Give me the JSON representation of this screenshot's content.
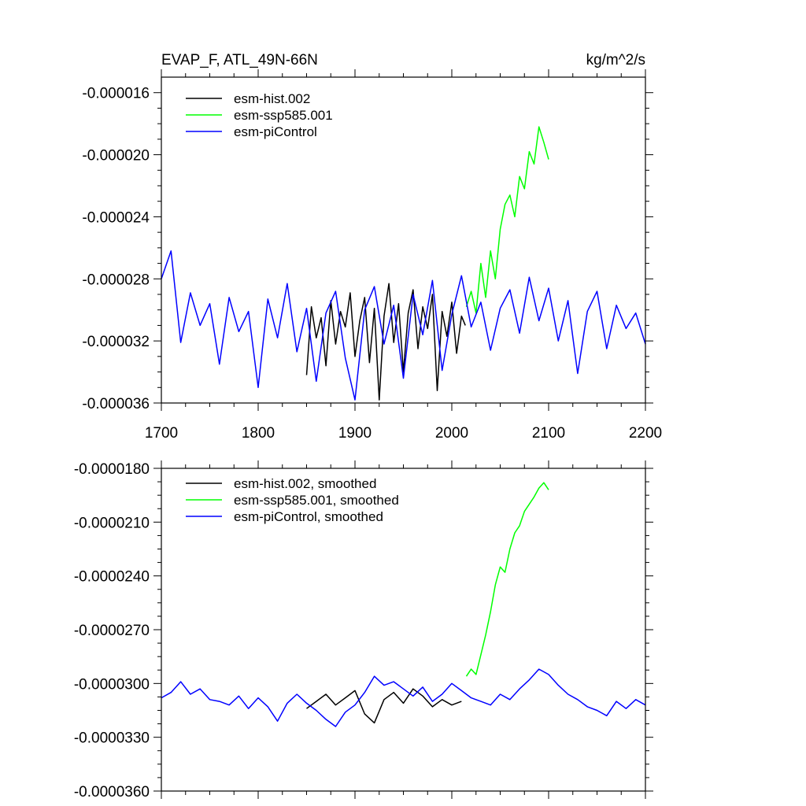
{
  "figure": {
    "title_left": "EVAP_F, ATL_49N-66N",
    "title_right": "kg/m^2/s"
  },
  "colors": {
    "esm-hist": "#000000",
    "esm-ssp585": "#00ff00",
    "esm-piControl": "#0000ff",
    "axes": "#000000",
    "background": "#ffffff"
  },
  "chart_data": [
    {
      "type": "line",
      "panel": "top",
      "title": "EVAP_F, ATL_49N-66N",
      "units": "kg/m^2/s",
      "xlabel": "",
      "ylabel": "",
      "xlim": [
        1700,
        2200
      ],
      "ylim": [
        -3.6e-05,
        -1.5e-05
      ],
      "xticks": [
        1700,
        1800,
        1900,
        2000,
        2100,
        2200
      ],
      "xtick_labels": [
        "1700",
        "1800",
        "1900",
        "2000",
        "2100",
        "2200"
      ],
      "yticks": [
        -1.6e-05,
        -2e-05,
        -2.4e-05,
        -2.8e-05,
        -3.2e-05,
        -3.6e-05
      ],
      "ytick_labels": [
        "-0.000016",
        "-0.000020",
        "-0.000024",
        "-0.000028",
        "-0.000032",
        "-0.000036"
      ],
      "grid": false,
      "legend_position": "top-left",
      "series": [
        {
          "name": "esm-hist.002",
          "color_key": "esm-hist",
          "x": [
            1850,
            1855,
            1860,
            1865,
            1870,
            1875,
            1880,
            1885,
            1890,
            1895,
            1900,
            1905,
            1910,
            1915,
            1920,
            1925,
            1930,
            1935,
            1940,
            1945,
            1950,
            1955,
            1960,
            1965,
            1970,
            1975,
            1980,
            1985,
            1990,
            1995,
            2000,
            2005,
            2010,
            2014
          ],
          "y": [
            -3.42e-05,
            -2.98e-05,
            -3.18e-05,
            -3.05e-05,
            -3.36e-05,
            -2.94e-05,
            -3.22e-05,
            -3.01e-05,
            -3.11e-05,
            -2.89e-05,
            -3.3e-05,
            -3.07e-05,
            -2.92e-05,
            -3.34e-05,
            -2.99e-05,
            -3.58e-05,
            -3.04e-05,
            -2.83e-05,
            -3.21e-05,
            -2.96e-05,
            -3.4e-05,
            -3.02e-05,
            -2.87e-05,
            -3.25e-05,
            -2.98e-05,
            -3.12e-05,
            -2.9e-05,
            -3.52e-05,
            -3.01e-05,
            -3.17e-05,
            -2.95e-05,
            -3.28e-05,
            -3.04e-05,
            -3.1e-05
          ]
        },
        {
          "name": "esm-ssp585.001",
          "color_key": "esm-ssp585",
          "x": [
            2015,
            2020,
            2025,
            2030,
            2035,
            2040,
            2045,
            2050,
            2055,
            2060,
            2065,
            2070,
            2075,
            2080,
            2085,
            2090,
            2095,
            2100
          ],
          "y": [
            -2.98e-05,
            -2.88e-05,
            -3.02e-05,
            -2.7e-05,
            -2.92e-05,
            -2.62e-05,
            -2.8e-05,
            -2.48e-05,
            -2.32e-05,
            -2.26e-05,
            -2.4e-05,
            -2.14e-05,
            -2.22e-05,
            -1.98e-05,
            -2.06e-05,
            -1.82e-05,
            -1.92e-05,
            -2.03e-05
          ]
        },
        {
          "name": "esm-piControl",
          "color_key": "esm-piControl",
          "x": [
            1700,
            1710,
            1720,
            1730,
            1740,
            1750,
            1760,
            1770,
            1780,
            1790,
            1800,
            1810,
            1820,
            1830,
            1840,
            1850,
            1860,
            1870,
            1880,
            1890,
            1900,
            1910,
            1920,
            1930,
            1940,
            1950,
            1960,
            1970,
            1980,
            1990,
            2000,
            2010,
            2020,
            2030,
            2040,
            2050,
            2060,
            2070,
            2080,
            2090,
            2100,
            2110,
            2120,
            2130,
            2140,
            2150,
            2160,
            2170,
            2180,
            2190,
            2200
          ],
          "y": [
            -2.8e-05,
            -2.62e-05,
            -3.21e-05,
            -2.89e-05,
            -3.1e-05,
            -2.96e-05,
            -3.35e-05,
            -2.92e-05,
            -3.14e-05,
            -3.01e-05,
            -3.5e-05,
            -2.93e-05,
            -3.18e-05,
            -2.83e-05,
            -3.27e-05,
            -2.99e-05,
            -3.46e-05,
            -3.02e-05,
            -2.88e-05,
            -3.31e-05,
            -3.58e-05,
            -3e-05,
            -2.85e-05,
            -3.22e-05,
            -2.97e-05,
            -3.44e-05,
            -2.9e-05,
            -3.16e-05,
            -2.81e-05,
            -3.39e-05,
            -3.03e-05,
            -2.78e-05,
            -3.11e-05,
            -2.95e-05,
            -3.26e-05,
            -2.99e-05,
            -2.87e-05,
            -3.15e-05,
            -2.79e-05,
            -3.07e-05,
            -2.86e-05,
            -3.2e-05,
            -2.94e-05,
            -3.41e-05,
            -3.01e-05,
            -2.88e-05,
            -3.25e-05,
            -2.97e-05,
            -3.12e-05,
            -3.02e-05,
            -3.22e-05
          ]
        }
      ]
    },
    {
      "type": "line",
      "panel": "bottom",
      "title": "",
      "xlabel": "",
      "ylabel": "",
      "xlim": [
        1700,
        2200
      ],
      "ylim": [
        -3.6e-05,
        -1.8e-05
      ],
      "xticks": [
        1700,
        1800,
        1900,
        2000,
        2100,
        2200
      ],
      "xtick_labels": [],
      "yticks": [
        -1.8e-05,
        -2.1e-05,
        -2.4e-05,
        -2.7e-05,
        -3e-05,
        -3.3e-05,
        -3.6e-05
      ],
      "ytick_labels": [
        "-0.0000180",
        "-0.0000210",
        "-0.0000240",
        "-0.0000270",
        "-0.0000300",
        "-0.0000330",
        "-0.0000360"
      ],
      "grid": false,
      "legend_position": "top-left",
      "series": [
        {
          "name": "esm-hist.002, smoothed",
          "color_key": "esm-hist",
          "x": [
            1850,
            1860,
            1870,
            1880,
            1890,
            1900,
            1910,
            1920,
            1930,
            1940,
            1950,
            1960,
            1970,
            1980,
            1990,
            2000,
            2010
          ],
          "y": [
            -3.14e-05,
            -3.1e-05,
            -3.06e-05,
            -3.12e-05,
            -3.08e-05,
            -3.04e-05,
            -3.17e-05,
            -3.22e-05,
            -3.09e-05,
            -3.05e-05,
            -3.11e-05,
            -3.03e-05,
            -3.07e-05,
            -3.13e-05,
            -3.09e-05,
            -3.12e-05,
            -3.1e-05
          ]
        },
        {
          "name": "esm-ssp585.001, smoothed",
          "color_key": "esm-ssp585",
          "x": [
            2015,
            2020,
            2025,
            2030,
            2035,
            2040,
            2045,
            2050,
            2055,
            2060,
            2065,
            2070,
            2075,
            2080,
            2085,
            2090,
            2095,
            2100
          ],
          "y": [
            -2.96e-05,
            -2.92e-05,
            -2.95e-05,
            -2.84e-05,
            -2.73e-05,
            -2.6e-05,
            -2.45e-05,
            -2.35e-05,
            -2.38e-05,
            -2.25e-05,
            -2.16e-05,
            -2.12e-05,
            -2.04e-05,
            -2e-05,
            -1.96e-05,
            -1.91e-05,
            -1.88e-05,
            -1.92e-05
          ]
        },
        {
          "name": "esm-piControl, smoothed",
          "color_key": "esm-piControl",
          "x": [
            1700,
            1710,
            1720,
            1730,
            1740,
            1750,
            1760,
            1770,
            1780,
            1790,
            1800,
            1810,
            1820,
            1830,
            1840,
            1850,
            1860,
            1870,
            1880,
            1890,
            1900,
            1910,
            1920,
            1930,
            1940,
            1950,
            1960,
            1970,
            1980,
            1990,
            2000,
            2010,
            2020,
            2030,
            2040,
            2050,
            2060,
            2070,
            2080,
            2090,
            2100,
            2110,
            2120,
            2130,
            2140,
            2150,
            2160,
            2170,
            2180,
            2190,
            2200
          ],
          "y": [
            -3.08e-05,
            -3.05e-05,
            -2.99e-05,
            -3.06e-05,
            -3.03e-05,
            -3.09e-05,
            -3.1e-05,
            -3.12e-05,
            -3.07e-05,
            -3.14e-05,
            -3.08e-05,
            -3.13e-05,
            -3.21e-05,
            -3.11e-05,
            -3.06e-05,
            -3.11e-05,
            -3.15e-05,
            -3.2e-05,
            -3.24e-05,
            -3.16e-05,
            -3.12e-05,
            -3.05e-05,
            -2.96e-05,
            -3.01e-05,
            -2.99e-05,
            -3.03e-05,
            -3.07e-05,
            -3.02e-05,
            -3.1e-05,
            -3.06e-05,
            -3e-05,
            -3.04e-05,
            -3.08e-05,
            -3.1e-05,
            -3.12e-05,
            -3.06e-05,
            -3.09e-05,
            -3.03e-05,
            -2.98e-05,
            -2.92e-05,
            -2.95e-05,
            -3.01e-05,
            -3.06e-05,
            -3.09e-05,
            -3.13e-05,
            -3.15e-05,
            -3.18e-05,
            -3.1e-05,
            -3.14e-05,
            -3.09e-05,
            -3.12e-05
          ]
        }
      ]
    }
  ]
}
